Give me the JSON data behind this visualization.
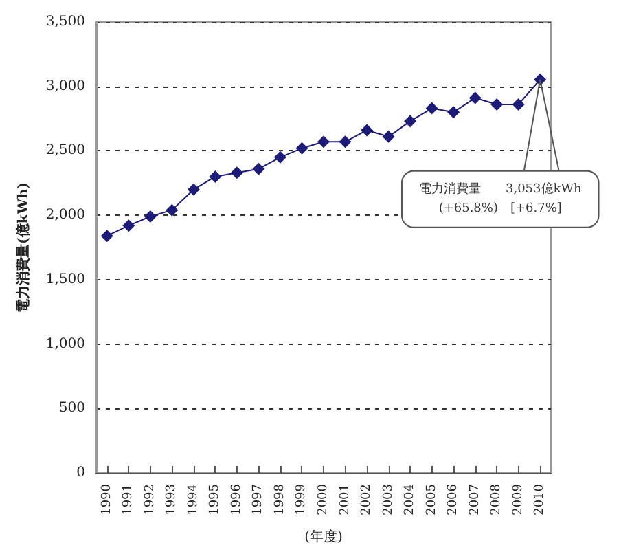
{
  "chart_data": {
    "type": "line",
    "xlabel": "(年度)",
    "ylabel": "電力消費量(億kWh)",
    "categories": [
      "1990",
      "1991",
      "1992",
      "1993",
      "1994",
      "1995",
      "1996",
      "1997",
      "1998",
      "1999",
      "2000",
      "2001",
      "2002",
      "2003",
      "2004",
      "2005",
      "2006",
      "2007",
      "2008",
      "2009",
      "2010"
    ],
    "series": [
      {
        "color": "#1c1c78",
        "values": [
          1840,
          1920,
          1990,
          2040,
          2200,
          2300,
          2330,
          2360,
          2450,
          2520,
          2570,
          2570,
          2660,
          2610,
          2730,
          2830,
          2800,
          2910,
          2860,
          2860,
          3053
        ]
      }
    ],
    "ylim": [
      0,
      3500
    ],
    "yticks": [
      {
        "value": 0,
        "label": "0"
      },
      {
        "value": 500,
        "label": "500"
      },
      {
        "value": 1000,
        "label": "1,000"
      },
      {
        "value": 1500,
        "label": "1,500"
      },
      {
        "value": 2000,
        "label": "2,000"
      },
      {
        "value": 2500,
        "label": "2,500"
      },
      {
        "value": 3000,
        "label": "3,000"
      },
      {
        "value": 3500,
        "label": "3,500"
      }
    ],
    "grid": "y",
    "marker": "diamond",
    "line_style": "solid",
    "annotations": [
      "電力消費量　　3,053億kWh\n(+65.8%)　[+6.7%]"
    ]
  }
}
